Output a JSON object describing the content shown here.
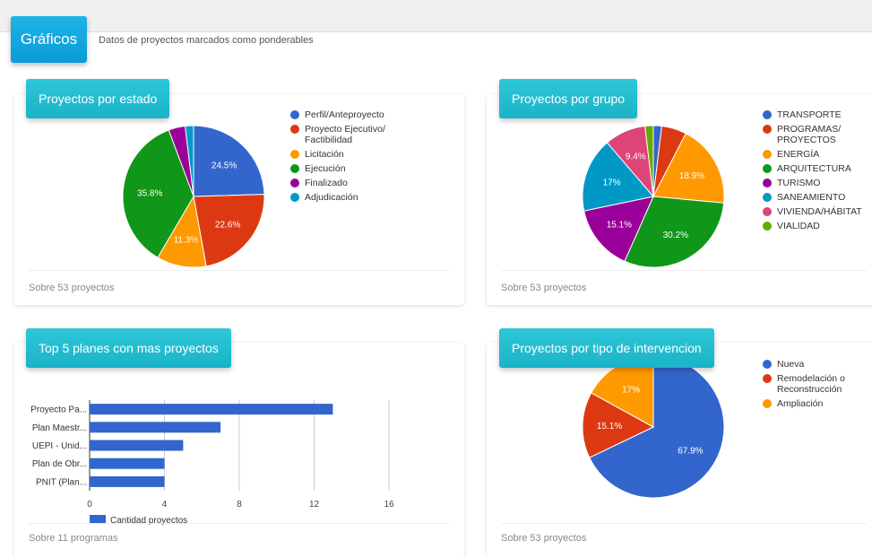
{
  "header": {
    "title": "Gráficos",
    "subtitle": "Datos de proyectos marcados como ponderables"
  },
  "cards": {
    "estado": {
      "title": "Proyectos por estado",
      "footer": "Sobre 53 proyectos",
      "legend": [
        {
          "label": "Perfil/Anteproyecto",
          "color": "#3366cc"
        },
        {
          "label": "Proyecto Ejecutivo/ Factibilidad",
          "color": "#dc3912"
        },
        {
          "label": "Licitación",
          "color": "#ff9900"
        },
        {
          "label": "Ejecución",
          "color": "#109618"
        },
        {
          "label": "Finalizado",
          "color": "#990099"
        },
        {
          "label": "Adjudicación",
          "color": "#0099c6"
        }
      ]
    },
    "grupo": {
      "title": "Proyectos por grupo",
      "footer": "Sobre 53 proyectos",
      "legend": [
        {
          "label": "TRANSPORTE",
          "color": "#3366cc"
        },
        {
          "label": "PROGRAMAS/ PROYECTOS",
          "color": "#dc3912"
        },
        {
          "label": "ENERGÍA",
          "color": "#ff9900"
        },
        {
          "label": "ARQUITECTURA",
          "color": "#109618"
        },
        {
          "label": "TURISMO",
          "color": "#990099"
        },
        {
          "label": "SANEAMIENTO",
          "color": "#0099c6"
        },
        {
          "label": "VIVIENDA/HÁBITAT",
          "color": "#dd4477"
        },
        {
          "label": "VIALIDAD",
          "color": "#66aa00"
        }
      ]
    },
    "planes": {
      "title": "Top 5 planes con mas proyectos",
      "footer": "Sobre 11 programas",
      "legend_label": "Cantidad proyectos",
      "bar_color": "#3366cc"
    },
    "tipo": {
      "title": "Proyectos por tipo de intervencion",
      "footer": "Sobre 53 proyectos",
      "legend": [
        {
          "label": "Nueva",
          "color": "#3366cc"
        },
        {
          "label": "Remodelación o Reconstrucción",
          "color": "#dc3912"
        },
        {
          "label": "Ampliación",
          "color": "#ff9900"
        }
      ]
    }
  },
  "chart_data": [
    {
      "type": "pie",
      "title": "Proyectos por estado",
      "categories": [
        "Perfil/Anteproyecto",
        "Proyecto Ejecutivo/ Factibilidad",
        "Licitación",
        "Ejecución",
        "Finalizado",
        "Adjudicación"
      ],
      "values": [
        24.5,
        22.6,
        11.3,
        35.8,
        3.8,
        1.9
      ],
      "labels": [
        "24.5%",
        "22.6%",
        "11.3%",
        "35.8%",
        "",
        ""
      ],
      "colors": [
        "#3366cc",
        "#dc3912",
        "#ff9900",
        "#109618",
        "#990099",
        "#0099c6"
      ]
    },
    {
      "type": "pie",
      "title": "Proyectos por grupo",
      "categories": [
        "TRANSPORTE",
        "PROGRAMAS/ PROYECTOS",
        "ENERGÍA",
        "ARQUITECTURA",
        "TURISMO",
        "SANEAMIENTO",
        "VIVIENDA/HÁBITAT",
        "VIALIDAD"
      ],
      "values": [
        1.9,
        5.7,
        18.9,
        30.2,
        15.1,
        17.0,
        9.4,
        1.9
      ],
      "labels": [
        "",
        "",
        "18.9%",
        "30.2%",
        "15.1%",
        "17%",
        "9.4%",
        ""
      ],
      "colors": [
        "#3366cc",
        "#dc3912",
        "#ff9900",
        "#109618",
        "#990099",
        "#0099c6",
        "#dd4477",
        "#66aa00"
      ]
    },
    {
      "type": "bar",
      "title": "Top 5 planes con mas proyectos",
      "categories": [
        "Proyecto Pa...",
        "Plan Maestr...",
        "UEPI - Unid...",
        "Plan de Obr...",
        "PNIT (Plan..."
      ],
      "series": [
        {
          "name": "Cantidad proyectos",
          "values": [
            13,
            7,
            5,
            4,
            4
          ]
        }
      ],
      "xlim": [
        0,
        16
      ],
      "xticks": [
        0,
        4,
        8,
        12,
        16
      ],
      "orientation": "horizontal",
      "grid": true
    },
    {
      "type": "pie",
      "title": "Proyectos por tipo de intervencion",
      "categories": [
        "Nueva",
        "Remodelación o Reconstrucción",
        "Ampliación"
      ],
      "values": [
        67.9,
        15.1,
        17.0
      ],
      "labels": [
        "67.9%",
        "15.1%",
        "17%"
      ],
      "colors": [
        "#3366cc",
        "#dc3912",
        "#ff9900"
      ]
    }
  ]
}
